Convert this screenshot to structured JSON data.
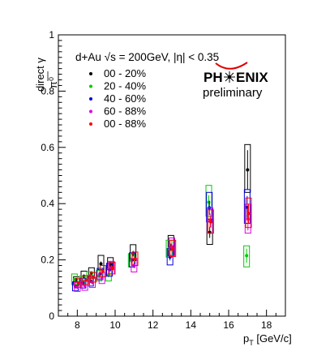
{
  "chart_data": {
    "type": "scatter",
    "title": "d+Au  √s = 200GeV, |η| < 0.35",
    "xlabel": {
      "main": "p",
      "sub": "T",
      "unit": " [GeV/c]"
    },
    "ylabel": {
      "num": "direct γ",
      "den": "π⁰"
    },
    "xlim": [
      7,
      19
    ],
    "ylim": [
      0,
      1
    ],
    "xticks": [
      "8",
      "10",
      "12",
      "14",
      "16",
      "18"
    ],
    "yticks": [
      "0",
      "0.2",
      "0.4",
      "0.6",
      "0.8",
      "1"
    ],
    "grid": false,
    "legend_position": "top-left",
    "logo": {
      "line1_left": "PH",
      "line1_right": "ENIX",
      "line2": "preliminary"
    },
    "series": [
      {
        "name": "00 - 20%",
        "color": "#000000",
        "points": [
          {
            "x": 7.95,
            "y": 0.13,
            "stat": 0.006,
            "sys_lo": 0.11,
            "sys_hi": 0.14
          },
          {
            "x": 8.35,
            "y": 0.142,
            "stat": 0.006,
            "sys_lo": 0.125,
            "sys_hi": 0.16
          },
          {
            "x": 8.75,
            "y": 0.153,
            "stat": 0.007,
            "sys_lo": 0.135,
            "sys_hi": 0.172
          },
          {
            "x": 9.25,
            "y": 0.186,
            "stat": 0.008,
            "sys_lo": 0.165,
            "sys_hi": 0.216
          },
          {
            "x": 9.75,
            "y": 0.183,
            "stat": 0.009,
            "sys_lo": 0.165,
            "sys_hi": 0.208
          },
          {
            "x": 10.95,
            "y": 0.222,
            "stat": 0.01,
            "sys_lo": 0.197,
            "sys_hi": 0.254
          },
          {
            "x": 12.95,
            "y": 0.245,
            "stat": 0.013,
            "sys_lo": 0.215,
            "sys_hi": 0.287
          },
          {
            "x": 15.0,
            "y": 0.298,
            "stat": 0.02,
            "sys_lo": 0.255,
            "sys_hi": 0.345
          },
          {
            "x": 17.0,
            "y": 0.52,
            "stat": 0.07,
            "sys_lo": 0.44,
            "sys_hi": 0.61
          }
        ]
      },
      {
        "name": "20 - 40%",
        "color": "#00cc00",
        "points": [
          {
            "x": 7.85,
            "y": 0.13,
            "stat": 0.006,
            "sys_lo": 0.112,
            "sys_hi": 0.15
          },
          {
            "x": 8.25,
            "y": 0.127,
            "stat": 0.006,
            "sys_lo": 0.11,
            "sys_hi": 0.142
          },
          {
            "x": 8.65,
            "y": 0.142,
            "stat": 0.007,
            "sys_lo": 0.124,
            "sys_hi": 0.158
          },
          {
            "x": 9.15,
            "y": 0.143,
            "stat": 0.008,
            "sys_lo": 0.125,
            "sys_hi": 0.162
          },
          {
            "x": 9.65,
            "y": 0.147,
            "stat": 0.009,
            "sys_lo": 0.125,
            "sys_hi": 0.168
          },
          {
            "x": 10.85,
            "y": 0.198,
            "stat": 0.01,
            "sys_lo": 0.175,
            "sys_hi": 0.222
          },
          {
            "x": 12.85,
            "y": 0.24,
            "stat": 0.012,
            "sys_lo": 0.21,
            "sys_hi": 0.27
          },
          {
            "x": 14.95,
            "y": 0.405,
            "stat": 0.025,
            "sys_lo": 0.355,
            "sys_hi": 0.465
          },
          {
            "x": 16.95,
            "y": 0.215,
            "stat": 0.025,
            "sys_lo": 0.175,
            "sys_hi": 0.25
          }
        ]
      },
      {
        "name": "40 - 60%",
        "color": "#0000dd",
        "points": [
          {
            "x": 7.9,
            "y": 0.105,
            "stat": 0.006,
            "sys_lo": 0.09,
            "sys_hi": 0.122
          },
          {
            "x": 8.3,
            "y": 0.118,
            "stat": 0.006,
            "sys_lo": 0.1,
            "sys_hi": 0.135
          },
          {
            "x": 8.7,
            "y": 0.125,
            "stat": 0.007,
            "sys_lo": 0.107,
            "sys_hi": 0.143
          },
          {
            "x": 9.2,
            "y": 0.15,
            "stat": 0.008,
            "sys_lo": 0.13,
            "sys_hi": 0.17
          },
          {
            "x": 9.7,
            "y": 0.165,
            "stat": 0.009,
            "sys_lo": 0.142,
            "sys_hi": 0.188
          },
          {
            "x": 10.9,
            "y": 0.2,
            "stat": 0.01,
            "sys_lo": 0.175,
            "sys_hi": 0.225
          },
          {
            "x": 12.9,
            "y": 0.21,
            "stat": 0.012,
            "sys_lo": 0.182,
            "sys_hi": 0.24
          },
          {
            "x": 14.98,
            "y": 0.385,
            "stat": 0.025,
            "sys_lo": 0.335,
            "sys_hi": 0.44
          },
          {
            "x": 16.98,
            "y": 0.387,
            "stat": 0.04,
            "sys_lo": 0.33,
            "sys_hi": 0.45
          }
        ]
      },
      {
        "name": "60 - 88%",
        "color": "#dd00dd",
        "points": [
          {
            "x": 8.0,
            "y": 0.103,
            "stat": 0.006,
            "sys_lo": 0.088,
            "sys_hi": 0.12
          },
          {
            "x": 8.4,
            "y": 0.108,
            "stat": 0.006,
            "sys_lo": 0.092,
            "sys_hi": 0.125
          },
          {
            "x": 8.8,
            "y": 0.12,
            "stat": 0.007,
            "sys_lo": 0.102,
            "sys_hi": 0.138
          },
          {
            "x": 9.3,
            "y": 0.135,
            "stat": 0.008,
            "sys_lo": 0.116,
            "sys_hi": 0.155
          },
          {
            "x": 9.8,
            "y": 0.172,
            "stat": 0.009,
            "sys_lo": 0.15,
            "sys_hi": 0.195
          },
          {
            "x": 11.0,
            "y": 0.18,
            "stat": 0.01,
            "sys_lo": 0.157,
            "sys_hi": 0.205
          },
          {
            "x": 13.0,
            "y": 0.245,
            "stat": 0.012,
            "sys_lo": 0.215,
            "sys_hi": 0.278
          },
          {
            "x": 15.02,
            "y": 0.34,
            "stat": 0.025,
            "sys_lo": 0.295,
            "sys_hi": 0.385
          },
          {
            "x": 17.02,
            "y": 0.345,
            "stat": 0.04,
            "sys_lo": 0.295,
            "sys_hi": 0.398
          }
        ]
      },
      {
        "name": "00 - 88%",
        "color": "#ff0000",
        "points": [
          {
            "x": 8.05,
            "y": 0.118,
            "stat": 0.006,
            "sys_lo": 0.103,
            "sys_hi": 0.133
          },
          {
            "x": 8.45,
            "y": 0.128,
            "stat": 0.006,
            "sys_lo": 0.112,
            "sys_hi": 0.144
          },
          {
            "x": 8.85,
            "y": 0.138,
            "stat": 0.007,
            "sys_lo": 0.121,
            "sys_hi": 0.155
          },
          {
            "x": 9.35,
            "y": 0.16,
            "stat": 0.008,
            "sys_lo": 0.14,
            "sys_hi": 0.18
          },
          {
            "x": 9.85,
            "y": 0.17,
            "stat": 0.009,
            "sys_lo": 0.15,
            "sys_hi": 0.192
          },
          {
            "x": 11.05,
            "y": 0.203,
            "stat": 0.01,
            "sys_lo": 0.18,
            "sys_hi": 0.228
          },
          {
            "x": 13.05,
            "y": 0.24,
            "stat": 0.012,
            "sys_lo": 0.212,
            "sys_hi": 0.27
          },
          {
            "x": 15.05,
            "y": 0.335,
            "stat": 0.02,
            "sys_lo": 0.295,
            "sys_hi": 0.378
          },
          {
            "x": 17.05,
            "y": 0.365,
            "stat": 0.035,
            "sys_lo": 0.315,
            "sys_hi": 0.42
          }
        ]
      }
    ]
  }
}
